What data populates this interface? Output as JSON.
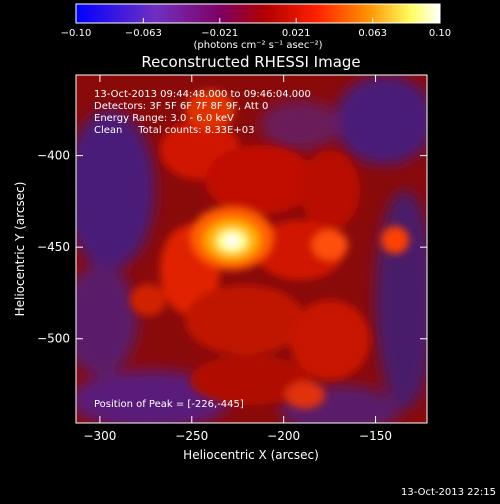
{
  "chart_data": {
    "type": "heatmap",
    "title": "Reconstructed RHESSI Image",
    "xlabel": "Heliocentric X (arcsec)",
    "ylabel": "Heliocentric Y (arcsec)",
    "xlim": [
      -313,
      -122
    ],
    "ylim": [
      -546,
      -356
    ],
    "x_ticks": [
      {
        "value": -300,
        "label": "−300"
      },
      {
        "value": -250,
        "label": "−250"
      },
      {
        "value": -200,
        "label": "−200"
      },
      {
        "value": -150,
        "label": "−150"
      }
    ],
    "y_ticks": [
      {
        "value": -400,
        "label": "−400"
      },
      {
        "value": -450,
        "label": "−450"
      },
      {
        "value": -500,
        "label": "−500"
      }
    ],
    "colorbar": {
      "range": [
        -0.1,
        0.1
      ],
      "ticks": [
        {
          "value": -0.1,
          "label": "−0.10"
        },
        {
          "value": -0.063,
          "label": "−0.063"
        },
        {
          "value": -0.021,
          "label": "−0.021"
        },
        {
          "value": 0.021,
          "label": "0.021"
        },
        {
          "value": 0.063,
          "label": "0.063"
        },
        {
          "value": 0.1,
          "label": "0.10"
        }
      ],
      "unit_label": "(photons cm⁻² s⁻¹ asec⁻²)",
      "colormap": [
        "#0000ff",
        "#6020c0",
        "#800080",
        "#c00000",
        "#ff3000",
        "#ffa000",
        "#ffff80",
        "#ffffff"
      ]
    },
    "annotations": [
      "13-Oct-2013 09:44:48.000 to 09:46:04.000",
      "Detectors: 3F 5F 6F 7F 8F 9F, Att 0",
      "Energy Range: 3.0 - 6.0 keV",
      "Clean     Total counts: 8.33E+03"
    ],
    "peak_label": "Position of Peak = [-226,-445]",
    "peak": {
      "x": -226,
      "y": -445
    }
  },
  "footer_timestamp": "13-Oct-2013 22:15"
}
